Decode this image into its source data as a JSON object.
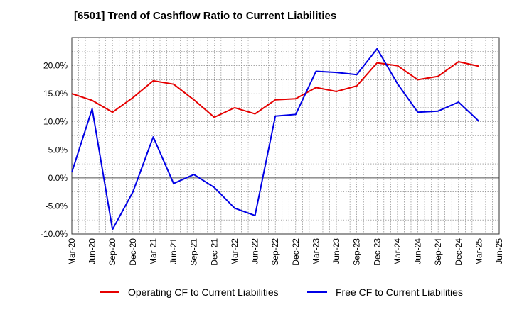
{
  "chart_data": {
    "type": "line",
    "title": "[6501]  Trend of Cashflow Ratio to Current Liabilities",
    "xlabel": "",
    "ylabel": "",
    "ylim": [
      -10,
      25
    ],
    "y_ticks": [
      "-10.0%",
      "-5.0%",
      "0.0%",
      "5.0%",
      "10.0%",
      "15.0%",
      "20.0%"
    ],
    "y_tick_values": [
      -10,
      -5,
      0,
      5,
      10,
      15,
      20
    ],
    "x_ticks": [
      "Mar-20",
      "Jun-20",
      "Sep-20",
      "Dec-20",
      "Mar-21",
      "Jun-21",
      "Sep-21",
      "Dec-21",
      "Mar-22",
      "Jun-22",
      "Sep-22",
      "Dec-22",
      "Mar-23",
      "Jun-23",
      "Sep-23",
      "Dec-23",
      "Mar-24",
      "Jun-24",
      "Sep-24",
      "Dec-24",
      "Mar-25",
      "Jun-25"
    ],
    "grid": true,
    "legend_position": "bottom",
    "series": [
      {
        "name": "Operating CF to Current Liabilities",
        "color": "#e60000",
        "values": [
          15.0,
          13.8,
          11.7,
          14.3,
          17.3,
          16.7,
          13.9,
          10.8,
          12.5,
          11.4,
          13.9,
          14.1,
          16.1,
          15.4,
          16.4,
          20.5,
          20.0,
          17.5,
          18.1,
          20.7,
          19.9
        ]
      },
      {
        "name": "Free CF to Current Liabilities",
        "color": "#0000e6",
        "values": [
          1.0,
          12.3,
          -9.2,
          -2.5,
          7.3,
          -1.0,
          0.6,
          -1.7,
          -5.4,
          -6.7,
          11.0,
          11.3,
          19.0,
          18.8,
          18.4,
          23.0,
          16.8,
          11.7,
          11.9,
          13.5,
          10.1
        ]
      }
    ]
  }
}
